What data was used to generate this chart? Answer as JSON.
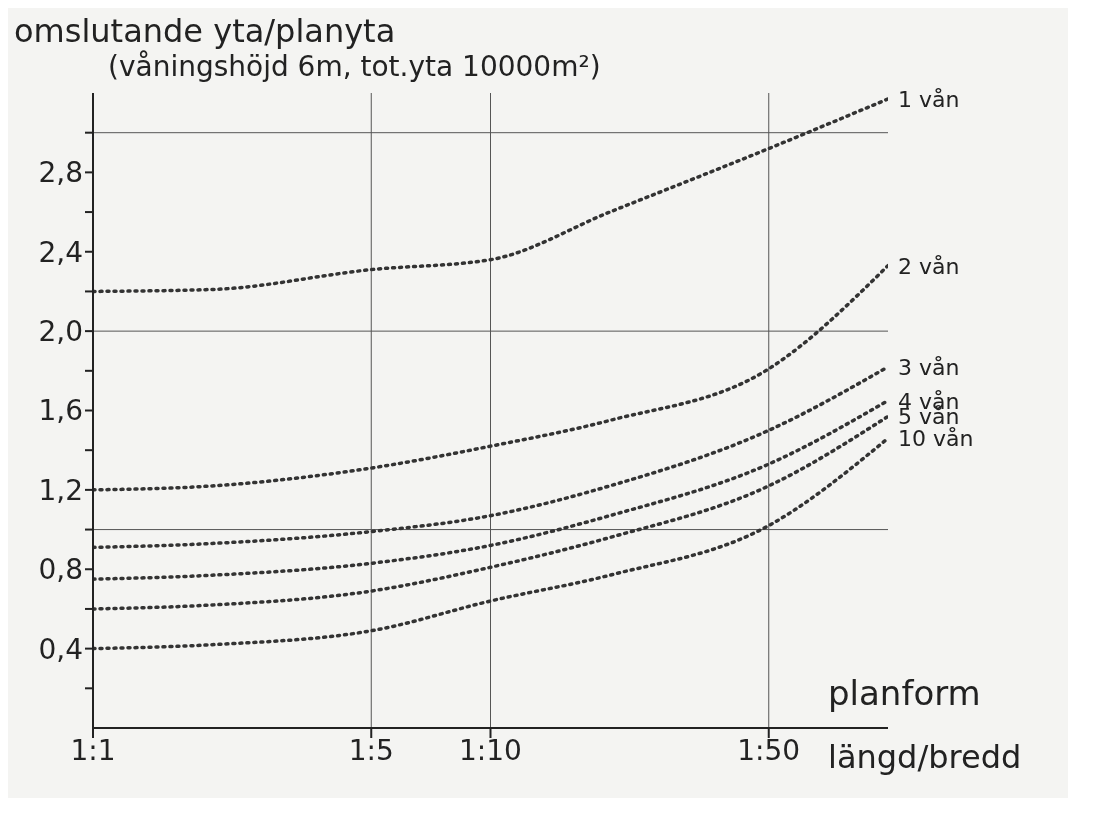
{
  "chart_data": {
    "type": "line",
    "ylabel": "omslutande yta/planyta",
    "subtitle": "(våningshöjd 6m, tot.yta 10000m²)",
    "xlabel": "planform",
    "annotations": [
      "längd/bredd"
    ],
    "categories": [
      "1:1",
      null,
      null,
      null,
      null,
      null,
      null,
      "1:5",
      null,
      null,
      "1:10",
      null,
      null,
      null,
      null,
      null,
      null,
      "1:50",
      null,
      null,
      null
    ],
    "series": [
      {
        "name": "1 vån",
        "color": "#333333",
        "values": [
          2.2,
          null,
          null,
          2.21,
          null,
          null,
          null,
          2.31,
          null,
          null,
          2.36,
          null,
          null,
          2.6,
          null,
          null,
          null,
          2.92,
          null,
          null,
          3.17
        ]
      },
      {
        "name": "2 vån",
        "color": "#333333",
        "values": [
          1.2,
          null,
          null,
          1.22,
          null,
          null,
          null,
          1.31,
          null,
          null,
          1.42,
          null,
          null,
          1.55,
          null,
          null,
          null,
          1.81,
          null,
          null,
          2.33
        ]
      },
      {
        "name": "3 vån",
        "color": "#333333",
        "values": [
          0.91,
          null,
          null,
          0.93,
          null,
          null,
          null,
          0.99,
          null,
          null,
          1.07,
          null,
          null,
          1.22,
          null,
          null,
          null,
          1.5,
          null,
          null,
          1.82
        ]
      },
      {
        "name": "4 vån",
        "color": "#333333",
        "values": [
          0.75,
          null,
          null,
          0.77,
          null,
          null,
          null,
          0.83,
          null,
          null,
          0.92,
          null,
          null,
          1.07,
          null,
          null,
          null,
          1.33,
          null,
          null,
          1.65
        ]
      },
      {
        "name": "5 vån",
        "color": "#333333",
        "values": [
          0.6,
          null,
          null,
          0.62,
          null,
          null,
          null,
          0.69,
          null,
          null,
          0.81,
          null,
          null,
          0.96,
          null,
          null,
          null,
          1.22,
          null,
          null,
          1.57
        ]
      },
      {
        "name": "10 vån",
        "color": "#333333",
        "values": [
          0.4,
          null,
          null,
          0.42,
          null,
          null,
          null,
          0.49,
          null,
          null,
          0.64,
          null,
          null,
          0.77,
          null,
          null,
          null,
          1.02,
          null,
          null,
          1.46
        ]
      }
    ],
    "ylim": [
      0,
      3.2
    ],
    "yticks": [
      {
        "value": 0.2,
        "label": null
      },
      {
        "value": 0.4,
        "label": "0,4"
      },
      {
        "value": 0.6,
        "label": null
      },
      {
        "value": 0.8,
        "label": "0,8"
      },
      {
        "value": 1.0,
        "label": null
      },
      {
        "value": 1.2,
        "label": "1,2"
      },
      {
        "value": 1.4,
        "label": null
      },
      {
        "value": 1.6,
        "label": "1,6"
      },
      {
        "value": 1.8,
        "label": null
      },
      {
        "value": 2.0,
        "label": "2,0"
      },
      {
        "value": 2.2,
        "label": null
      },
      {
        "value": 2.4,
        "label": "2,4"
      },
      {
        "value": 2.6,
        "label": null
      },
      {
        "value": 2.8,
        "label": "2,8"
      },
      {
        "value": 3.0,
        "label": null
      }
    ],
    "ref_lines": [
      {
        "axis": "y",
        "value": 1,
        "color": "#555555"
      },
      {
        "axis": "y",
        "value": 2,
        "color": "#555555"
      },
      {
        "axis": "y",
        "value": 3,
        "color": "#555555"
      },
      {
        "axis": "x",
        "value": "1:5",
        "color": "#555555"
      },
      {
        "axis": "x",
        "value": "1:10",
        "color": "#555555"
      },
      {
        "axis": "x",
        "value": "1:50",
        "color": "#555555"
      }
    ],
    "marker": "none",
    "line_style": "dotted",
    "legend": false
  }
}
